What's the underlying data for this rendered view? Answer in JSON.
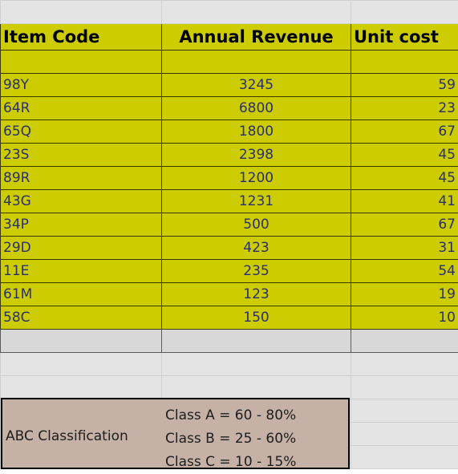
{
  "columns": [
    "Item Code",
    "Annual Revenue",
    "Unit cost"
  ],
  "rows": [
    {
      "code": "98Y",
      "revenue": "3245",
      "cost": "59"
    },
    {
      "code": "64R",
      "revenue": "6800",
      "cost": "23"
    },
    {
      "code": "65Q",
      "revenue": "1800",
      "cost": "67"
    },
    {
      "code": "23S",
      "revenue": "2398",
      "cost": "45"
    },
    {
      "code": "89R",
      "revenue": "1200",
      "cost": "45"
    },
    {
      "code": "43G",
      "revenue": "1231",
      "cost": "41"
    },
    {
      "code": "34P",
      "revenue": "500",
      "cost": "67"
    },
    {
      "code": "29D",
      "revenue": "423",
      "cost": "31"
    },
    {
      "code": "11E",
      "revenue": "235",
      "cost": "54"
    },
    {
      "code": "61M",
      "revenue": "123",
      "cost": "19"
    },
    {
      "code": "58C",
      "revenue": "150",
      "cost": "10"
    }
  ],
  "abc": {
    "title": "ABC Classification",
    "classes": [
      "Class A = 60 - 80%",
      "Class B = 25 - 60%",
      "Class C = 10 - 15%"
    ]
  },
  "colors": {
    "header_fill": "#cccc00",
    "abc_fill": "#c5b1a6",
    "gridline": "#d0d0d0"
  }
}
